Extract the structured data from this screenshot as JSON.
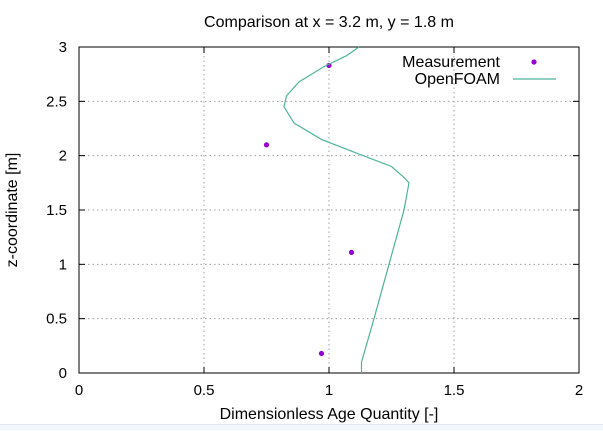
{
  "chart_data": {
    "type": "scatter",
    "title": "Comparison at x = 3.2 m, y = 1.8 m",
    "xlabel": "Dimensionless Age Quantity [-]",
    "ylabel": "z-coordinate [m]",
    "xlim": [
      0,
      2
    ],
    "ylim": [
      0,
      3
    ],
    "xticks": [
      "0",
      "0.5",
      "1",
      "1.5",
      "2"
    ],
    "yticks": [
      "0",
      "0.5",
      "1",
      "1.5",
      "2",
      "2.5",
      "3"
    ],
    "grid": true,
    "legend_position": "top-right",
    "series": [
      {
        "name": "Measurement",
        "kind": "points",
        "color": "#9400d3",
        "points": [
          {
            "x": 1.0,
            "y": 2.83
          },
          {
            "x": 0.75,
            "y": 2.1
          },
          {
            "x": 1.09,
            "y": 1.11
          },
          {
            "x": 0.97,
            "y": 0.18
          }
        ]
      },
      {
        "name": "OpenFOAM",
        "kind": "line",
        "color": "#4fb39a",
        "points": [
          {
            "x": 1.13,
            "y": 0.0
          },
          {
            "x": 1.13,
            "y": 0.1
          },
          {
            "x": 1.18,
            "y": 0.5
          },
          {
            "x": 1.24,
            "y": 1.0
          },
          {
            "x": 1.3,
            "y": 1.5
          },
          {
            "x": 1.32,
            "y": 1.75
          },
          {
            "x": 1.3,
            "y": 1.8
          },
          {
            "x": 1.25,
            "y": 1.9
          },
          {
            "x": 1.08,
            "y": 2.05
          },
          {
            "x": 0.97,
            "y": 2.15
          },
          {
            "x": 0.86,
            "y": 2.3
          },
          {
            "x": 0.82,
            "y": 2.45
          },
          {
            "x": 0.83,
            "y": 2.55
          },
          {
            "x": 0.88,
            "y": 2.68
          },
          {
            "x": 0.98,
            "y": 2.82
          },
          {
            "x": 1.07,
            "y": 2.92
          },
          {
            "x": 1.12,
            "y": 3.0
          }
        ]
      }
    ]
  }
}
